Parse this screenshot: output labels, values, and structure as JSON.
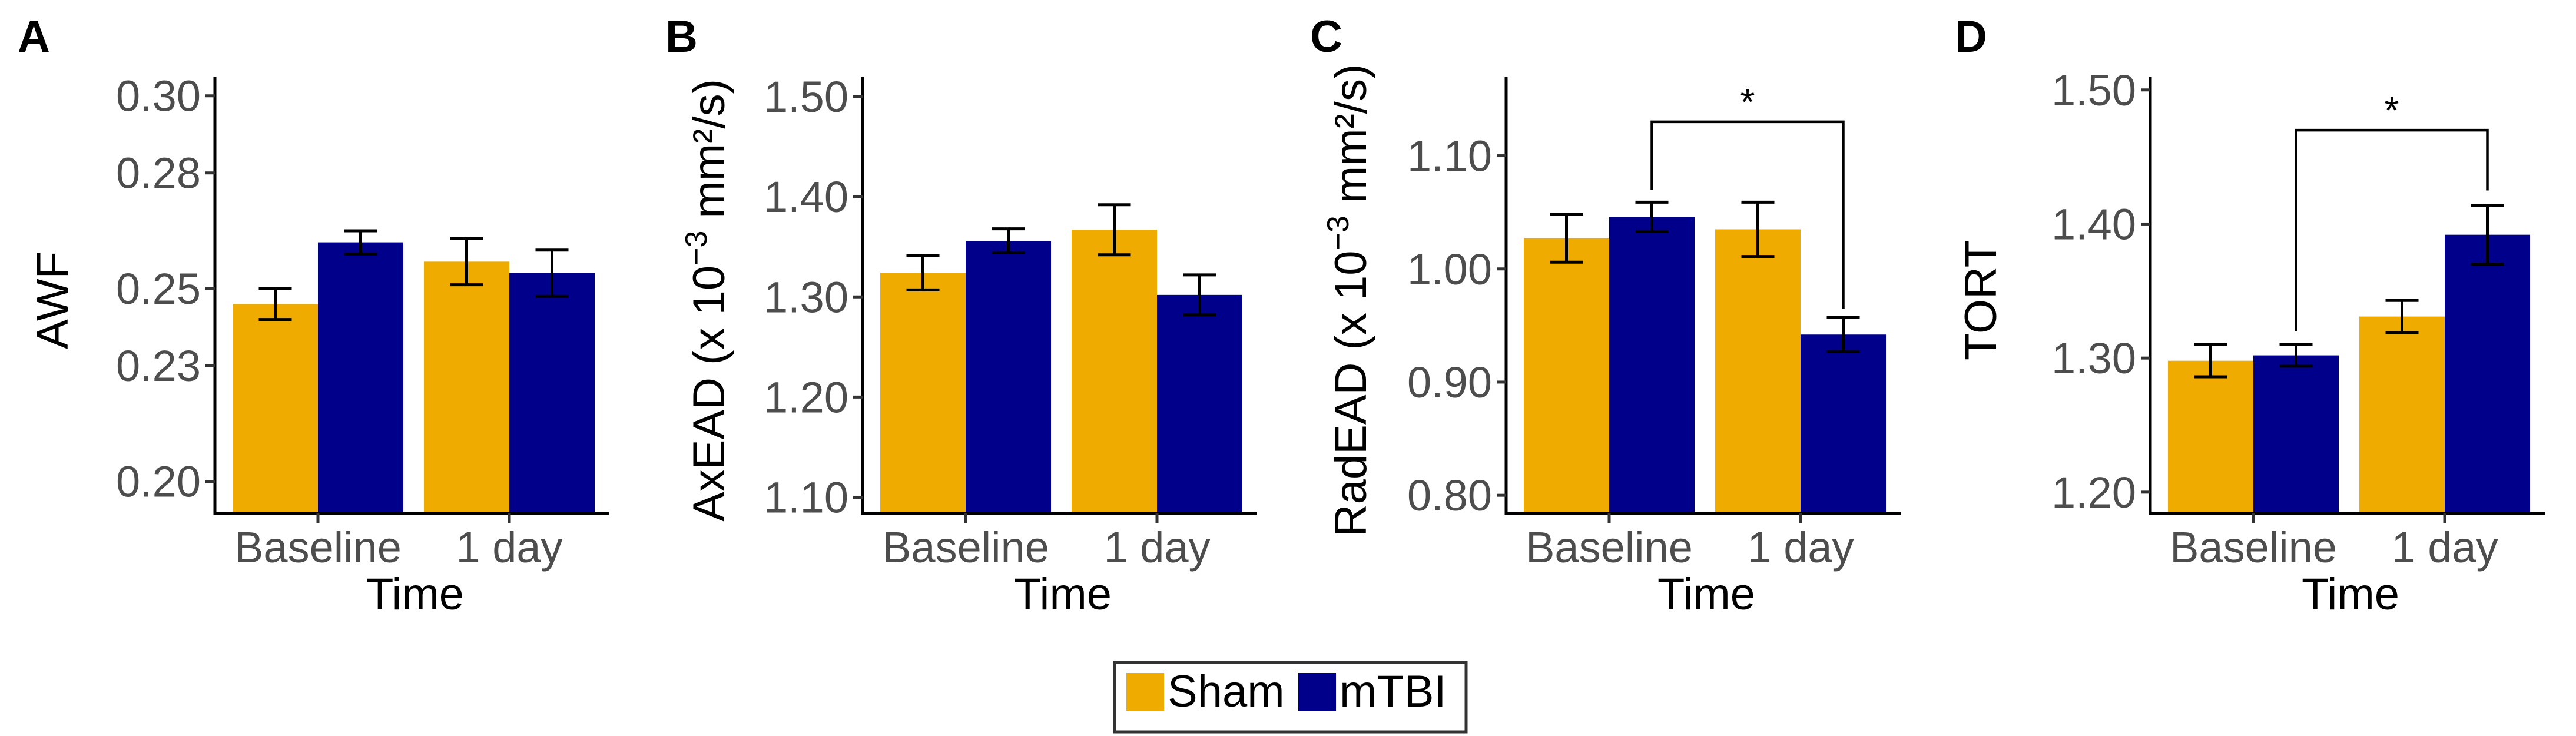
{
  "colors": {
    "Sham": "#EFAB00",
    "mTBI": "#00008B",
    "axis": "#000000",
    "tick_text": "#4D4D4D"
  },
  "legend": {
    "items": [
      {
        "label": "Sham",
        "color": "#EFAB00"
      },
      {
        "label": "mTBI",
        "color": "#00008B"
      }
    ],
    "placement": "bottom-center"
  },
  "chart_data": [
    {
      "panel": "A",
      "type": "bar",
      "title": "",
      "xlabel": "Time",
      "ylabel_prefix": "AWF",
      "ylabel_superscript": "",
      "ylabel_suffix": "",
      "categories": [
        "Baseline",
        "1 day"
      ],
      "series": [
        {
          "name": "Sham",
          "values": [
            0.246,
            0.257
          ],
          "errors": [
            0.004,
            0.006
          ]
        },
        {
          "name": "mTBI",
          "values": [
            0.262,
            0.254
          ],
          "errors": [
            0.003,
            0.006
          ]
        }
      ],
      "ylim": [
        0.192,
        0.305
      ],
      "yticks": [
        0.2,
        0.23,
        0.25,
        0.28,
        0.3
      ],
      "ytick_labels": [
        "0.20",
        "0.23",
        "0.25",
        "0.28",
        "0.30"
      ],
      "annotation": null
    },
    {
      "panel": "B",
      "type": "bar",
      "title": "",
      "xlabel": "Time",
      "ylabel_prefix": "AxEAD (x 10",
      "ylabel_superscript": "−3",
      "ylabel_suffix": " mm²/s)",
      "categories": [
        "Baseline",
        "1 day"
      ],
      "series": [
        {
          "name": "Sham",
          "values": [
            1.324,
            1.367
          ],
          "errors": [
            0.017,
            0.025
          ]
        },
        {
          "name": "mTBI",
          "values": [
            1.356,
            1.302
          ],
          "errors": [
            0.012,
            0.02
          ]
        }
      ],
      "ylim": [
        1.085,
        1.52
      ],
      "yticks": [
        1.1,
        1.2,
        1.3,
        1.4,
        1.5
      ],
      "ytick_labels": [
        "1.10",
        "1.20",
        "1.30",
        "1.40",
        "1.50"
      ],
      "annotation": null
    },
    {
      "panel": "C",
      "type": "bar",
      "title": "",
      "xlabel": "Time",
      "ylabel_prefix": "RadEAD (x 10",
      "ylabel_superscript": "−3",
      "ylabel_suffix": " mm²/s)",
      "categories": [
        "Baseline",
        "1 day"
      ],
      "series": [
        {
          "name": "Sham",
          "values": [
            1.027,
            1.035
          ],
          "errors": [
            0.021,
            0.024
          ]
        },
        {
          "name": "mTBI",
          "values": [
            1.046,
            0.942
          ],
          "errors": [
            0.013,
            0.015
          ]
        }
      ],
      "ylim": [
        0.785,
        1.17
      ],
      "yticks": [
        0.8,
        0.9,
        1.0,
        1.1
      ],
      "ytick_labels": [
        "0.80",
        "0.90",
        "1.00",
        "1.10"
      ],
      "annotation": {
        "text": "*",
        "from": [
          "Baseline",
          "mTBI"
        ],
        "to": [
          "1 day",
          "mTBI"
        ],
        "bracket_y": 1.13,
        "from_drop": 1.07,
        "to_drop": 0.965
      }
    },
    {
      "panel": "D",
      "type": "bar",
      "title": "",
      "xlabel": "Time",
      "ylabel_prefix": "TORT",
      "ylabel_superscript": "",
      "ylabel_suffix": "",
      "categories": [
        "Baseline",
        "1 day"
      ],
      "series": [
        {
          "name": "Sham",
          "values": [
            1.298,
            1.331
          ],
          "errors": [
            0.012,
            0.012
          ]
        },
        {
          "name": "mTBI",
          "values": [
            1.302,
            1.392
          ],
          "errors": [
            0.008,
            0.022
          ]
        }
      ],
      "ylim": [
        1.185,
        1.51
      ],
      "yticks": [
        1.2,
        1.3,
        1.4,
        1.5
      ],
      "ytick_labels": [
        "1.20",
        "1.30",
        "1.40",
        "1.50"
      ],
      "annotation": {
        "text": "*",
        "from": [
          "Baseline",
          "mTBI"
        ],
        "to": [
          "1 day",
          "mTBI"
        ],
        "bracket_y": 1.47,
        "from_drop": 1.32,
        "to_drop": 1.425
      }
    }
  ]
}
